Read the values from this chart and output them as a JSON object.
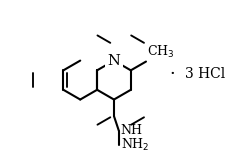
{
  "bg_color": "#ffffff",
  "line_color": "#000000",
  "line_width": 1.5,
  "font_size": 9,
  "salt_label": "3 HCl",
  "salt_dot": "·"
}
